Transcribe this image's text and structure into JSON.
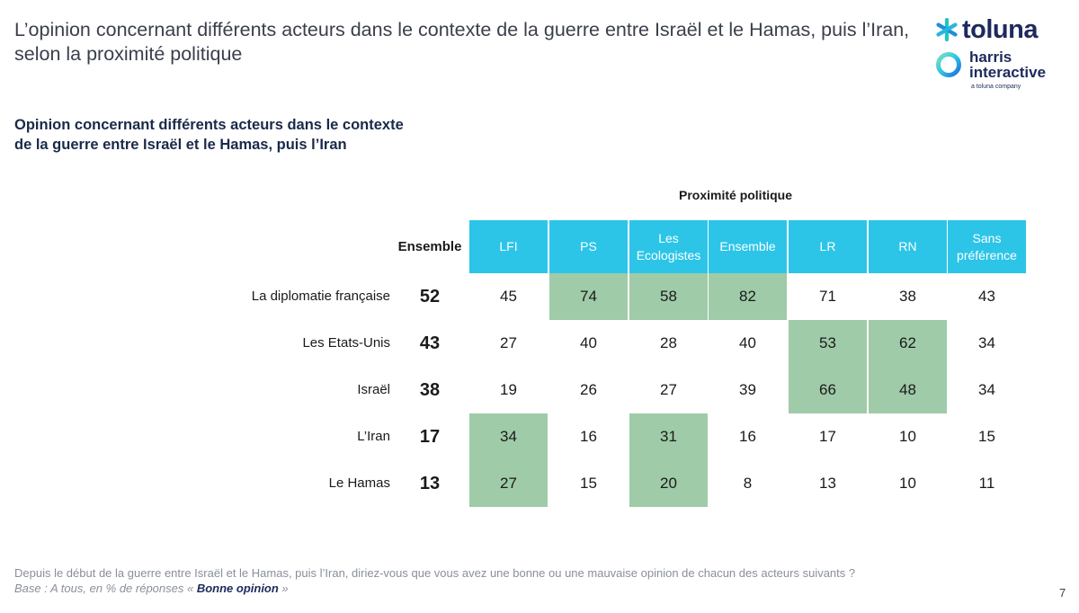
{
  "page_title": "L’opinion concernant différents acteurs dans le contexte de la guerre entre Israël et le Hamas, puis l’Iran, selon la proximité politique",
  "logos": {
    "toluna": "toluna",
    "harris_line1": "harris",
    "harris_line2": "interactive",
    "harris_tagline": "a toluna company"
  },
  "subtitle_line1": "Opinion concernant différents acteurs dans le contexte",
  "subtitle_line2": "de la guerre entre Israël et le Hamas, puis l’Iran",
  "colors": {
    "header_bg": "#2cc5e8",
    "highlight": "#9fcba8",
    "brand_navy": "#1d2a5c"
  },
  "chart_data": {
    "type": "table",
    "group_label": "Proximité politique",
    "overall_label": "Ensemble",
    "columns": [
      "LFI",
      "PS",
      "Les Ecologistes",
      "Ensemble",
      "LR",
      "RN",
      "Sans préférence"
    ],
    "rows": [
      {
        "label": "La diplomatie française",
        "overall": 52,
        "values": [
          45,
          74,
          58,
          82,
          71,
          38,
          43
        ],
        "highlighted": [
          false,
          true,
          true,
          true,
          false,
          false,
          false
        ]
      },
      {
        "label": "Les Etats-Unis",
        "overall": 43,
        "values": [
          27,
          40,
          28,
          40,
          53,
          62,
          34
        ],
        "highlighted": [
          false,
          false,
          false,
          false,
          true,
          true,
          false
        ]
      },
      {
        "label": "Israël",
        "overall": 38,
        "values": [
          19,
          26,
          27,
          39,
          66,
          48,
          34
        ],
        "highlighted": [
          false,
          false,
          false,
          false,
          true,
          true,
          false
        ]
      },
      {
        "label": "L’Iran",
        "overall": 17,
        "values": [
          34,
          16,
          31,
          16,
          17,
          10,
          15
        ],
        "highlighted": [
          true,
          false,
          true,
          false,
          false,
          false,
          false
        ]
      },
      {
        "label": "Le Hamas",
        "overall": 13,
        "values": [
          27,
          15,
          20,
          8,
          13,
          10,
          11
        ],
        "highlighted": [
          true,
          false,
          true,
          false,
          false,
          false,
          false
        ]
      }
    ]
  },
  "footnote_question": "Depuis le début de la guerre entre Israël et le Hamas, puis l’Iran, diriez-vous que vous avez une bonne ou une mauvaise opinion de chacun des acteurs suivants ?",
  "footnote_base_prefix": "Base : A tous, en % de réponses « ",
  "footnote_base_bold": "Bonne opinion",
  "footnote_base_suffix": " »",
  "page_number": "7"
}
